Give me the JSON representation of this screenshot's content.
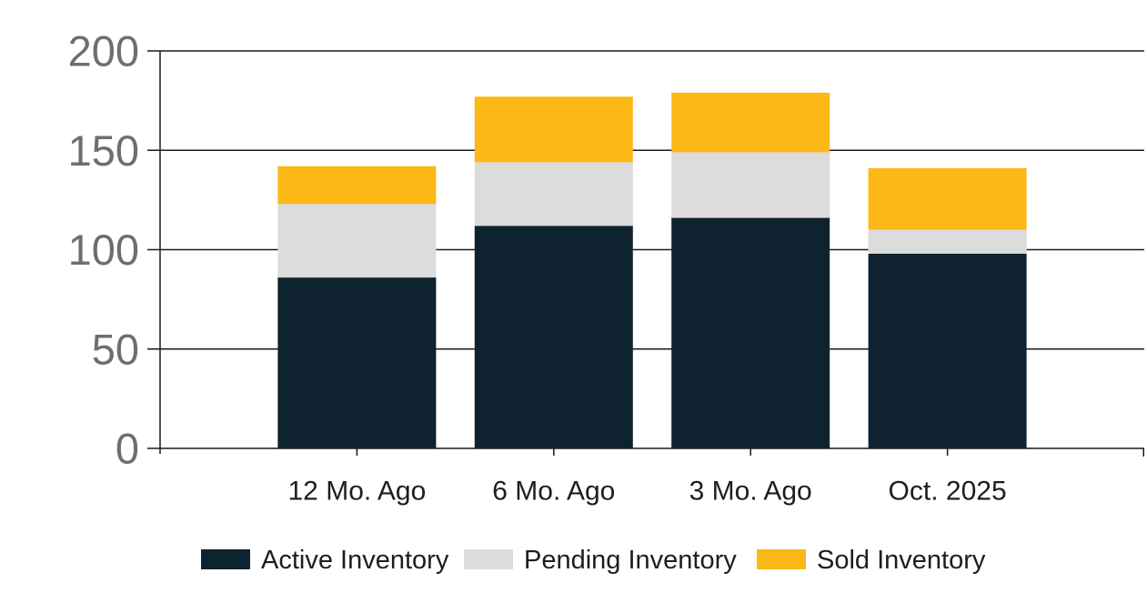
{
  "chart_data": {
    "type": "bar",
    "stacked": true,
    "title": "",
    "xlabel": "",
    "ylabel": "",
    "categories": [
      "12 Mo. Ago",
      "6 Mo. Ago",
      "3 Mo. Ago",
      "Oct. 2025"
    ],
    "series": [
      {
        "name": "Active Inventory",
        "color": "#0f2230",
        "values": [
          86,
          112,
          116,
          98
        ]
      },
      {
        "name": "Pending Inventory",
        "color": "#dcdcdc",
        "values": [
          37,
          32,
          33,
          12
        ]
      },
      {
        "name": "Sold Inventory",
        "color": "#fcb817",
        "values": [
          19,
          33,
          30,
          31
        ]
      }
    ],
    "totals": [
      142,
      177,
      179,
      141
    ],
    "ylim": [
      0,
      200
    ],
    "yticks": [
      "0",
      "50",
      "100",
      "150",
      "200"
    ],
    "grid": true,
    "legend_position": "bottom"
  },
  "colors": {
    "axis_line": "#1a1a1a",
    "gridline": "#1a1a1a",
    "y_tick_label": "#6d6e71",
    "x_tick_label": "#1d1e20",
    "legend_label": "#1d1e20",
    "background": "#ffffff"
  }
}
